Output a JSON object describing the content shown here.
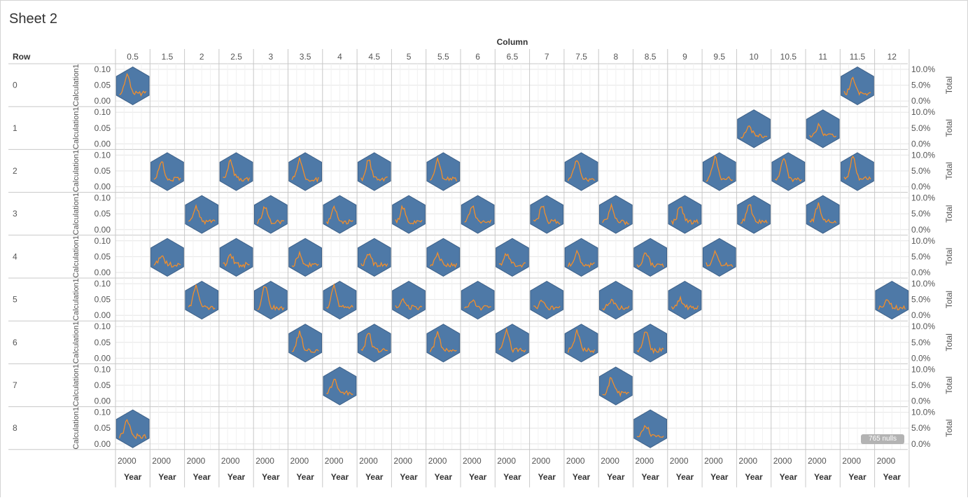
{
  "sheet_title": "Sheet 2",
  "nulls_badge": "765 nulls",
  "colors": {
    "hex_fill": "#4e79a7",
    "hex_stroke": "#3e6189",
    "line": "#f28e2b",
    "grid": "#e6e6e6",
    "divider": "#c8c8c8"
  },
  "chart_data": {
    "type": "line",
    "description_of_form": "trellis grid of hexagon cells with sparkline per filled cell",
    "col_header_title": "Column",
    "row_header_title": "Row",
    "columns": [
      "0.5",
      "1.5",
      "2",
      "2.5",
      "3",
      "3.5",
      "4",
      "4.5",
      "5",
      "5.5",
      "6",
      "6.5",
      "7",
      "7.5",
      "8",
      "8.5",
      "9",
      "9.5",
      "10",
      "10.5",
      "11",
      "11.5",
      "12"
    ],
    "rows": [
      "0",
      "1",
      "2",
      "3",
      "4",
      "5",
      "6",
      "7",
      "8"
    ],
    "y_axis_title": "Calculation1",
    "y_axis_ticks": [
      "0.10",
      "0.05",
      "0.00"
    ],
    "ylim": [
      0,
      0.1
    ],
    "right_axis_title": "Total",
    "right_axis_ticks": [
      "10.0%",
      "5.0%",
      "0.0%"
    ],
    "x_axis_title": "Year",
    "x_axis_tick": "2000",
    "filled_cells": [
      {
        "row": "0",
        "cols": [
          "0.5",
          "11.5"
        ]
      },
      {
        "row": "1",
        "cols": [
          "10",
          "11"
        ]
      },
      {
        "row": "2",
        "cols": [
          "1.5",
          "2.5",
          "3.5",
          "4.5",
          "5.5",
          "7.5",
          "9.5",
          "10.5",
          "11.5"
        ]
      },
      {
        "row": "3",
        "cols": [
          "2",
          "3",
          "4",
          "5",
          "6",
          "7",
          "8",
          "9",
          "10",
          "11"
        ]
      },
      {
        "row": "4",
        "cols": [
          "1.5",
          "2.5",
          "3.5",
          "4.5",
          "5.5",
          "6.5",
          "7.5",
          "8.5",
          "9.5"
        ]
      },
      {
        "row": "5",
        "cols": [
          "2",
          "3",
          "4",
          "5",
          "6",
          "7",
          "8",
          "9",
          "12"
        ]
      },
      {
        "row": "6",
        "cols": [
          "3.5",
          "4.5",
          "5.5",
          "6.5",
          "7.5",
          "8.5"
        ]
      },
      {
        "row": "7",
        "cols": [
          "4",
          "8"
        ]
      },
      {
        "row": "8",
        "cols": [
          "0.5",
          "8.5"
        ]
      }
    ]
  }
}
